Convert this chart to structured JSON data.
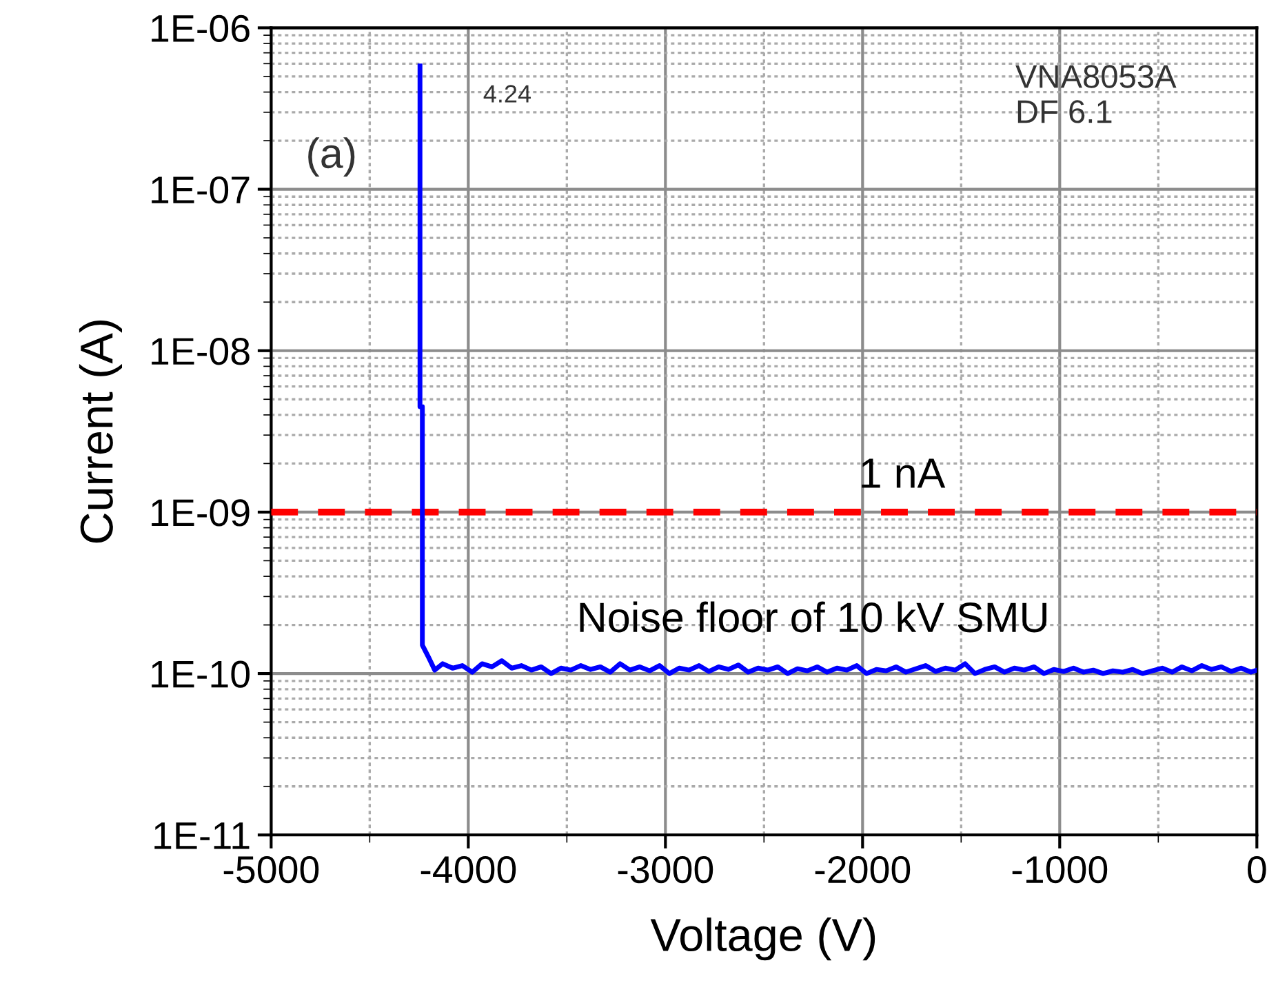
{
  "chart_data": {
    "type": "line",
    "xlabel": "Voltage (V)",
    "ylabel": "Current (A)",
    "log": "y",
    "grid": true,
    "marker": "none",
    "line_style": "solid",
    "xlim": [
      -5000,
      0
    ],
    "xticks": [
      -5000,
      -4000,
      -3000,
      -2000,
      -1000,
      0
    ],
    "ylim": [
      1e-11,
      1e-06
    ],
    "yticks": [
      {
        "value": 1e-11,
        "label": "1E-11"
      },
      {
        "value": 1e-10,
        "label": "1E-10"
      },
      {
        "value": 1e-09,
        "label": "1E-09"
      },
      {
        "value": 1e-08,
        "label": "1E-08"
      },
      {
        "value": 1e-07,
        "label": "1E-07"
      },
      {
        "value": 1e-06,
        "label": "1E-06"
      }
    ],
    "series": [
      {
        "color": "#0000ff",
        "x": [
          -4245,
          -4245,
          -4233,
          -4233,
          -4200,
          -4170,
          -4130,
          -4080,
          -4030,
          -3980,
          -3930,
          -3880,
          -3830,
          -3780,
          -3730,
          -3680,
          -3630,
          -3580,
          -3530,
          -3480,
          -3430,
          -3380,
          -3330,
          -3280,
          -3230,
          -3180,
          -3130,
          -3080,
          -3030,
          -2980,
          -2930,
          -2880,
          -2830,
          -2780,
          -2730,
          -2680,
          -2630,
          -2580,
          -2530,
          -2480,
          -2430,
          -2380,
          -2330,
          -2280,
          -2230,
          -2180,
          -2130,
          -2080,
          -2030,
          -1980,
          -1930,
          -1880,
          -1830,
          -1780,
          -1730,
          -1680,
          -1630,
          -1580,
          -1530,
          -1480,
          -1430,
          -1380,
          -1330,
          -1280,
          -1230,
          -1180,
          -1130,
          -1080,
          -1030,
          -980,
          -930,
          -880,
          -830,
          -780,
          -730,
          -680,
          -630,
          -580,
          -530,
          -480,
          -430,
          -380,
          -330,
          -280,
          -230,
          -180,
          -130,
          -80,
          -30,
          0
        ],
        "values": [
          5.8e-07,
          4.5e-09,
          4.5e-09,
          1.5e-10,
          1.25e-10,
          1.05e-10,
          1.15e-10,
          1.08e-10,
          1.12e-10,
          1.02e-10,
          1.15e-10,
          1.1e-10,
          1.2e-10,
          1.08e-10,
          1.12e-10,
          1.05e-10,
          1.1e-10,
          1e-10,
          1.08e-10,
          1.05e-10,
          1.12e-10,
          1.06e-10,
          1.1e-10,
          1.02e-10,
          1.15e-10,
          1.05e-10,
          1.1e-10,
          1.04e-10,
          1.12e-10,
          1e-10,
          1.08e-10,
          1.05e-10,
          1.12e-10,
          1.03e-10,
          1.1e-10,
          1.06e-10,
          1.13e-10,
          1.02e-10,
          1.08e-10,
          1.05e-10,
          1.1e-10,
          1e-10,
          1.07e-10,
          1.04e-10,
          1.1e-10,
          1.02e-10,
          1.08e-10,
          1.05e-10,
          1.12e-10,
          1e-10,
          1.06e-10,
          1.04e-10,
          1.1e-10,
          1.02e-10,
          1.07e-10,
          1.12e-10,
          1.03e-10,
          1.08e-10,
          1.05e-10,
          1.15e-10,
          1e-10,
          1.06e-10,
          1.1e-10,
          1.02e-10,
          1.08e-10,
          1.05e-10,
          1.1e-10,
          1e-10,
          1.06e-10,
          1.03e-10,
          1.08e-10,
          1.02e-10,
          1.05e-10,
          1e-10,
          1.04e-10,
          1.02e-10,
          1.06e-10,
          1e-10,
          1.04e-10,
          1.08e-10,
          1.02e-10,
          1.1e-10,
          1.04e-10,
          1.12e-10,
          1.06e-10,
          1.1e-10,
          1.03e-10,
          1.08e-10,
          1.02e-10,
          1.05e-10
        ]
      }
    ],
    "ref_lines": [
      {
        "axis": "y",
        "value": 1e-09,
        "label": "1 nA",
        "color": "#ff0000",
        "line_style": "dashed"
      }
    ],
    "annotations": [
      "4.24",
      "(a)",
      "VNA8053A\nDF 6.1",
      "Noise floor of 10 kV SMU"
    ]
  }
}
